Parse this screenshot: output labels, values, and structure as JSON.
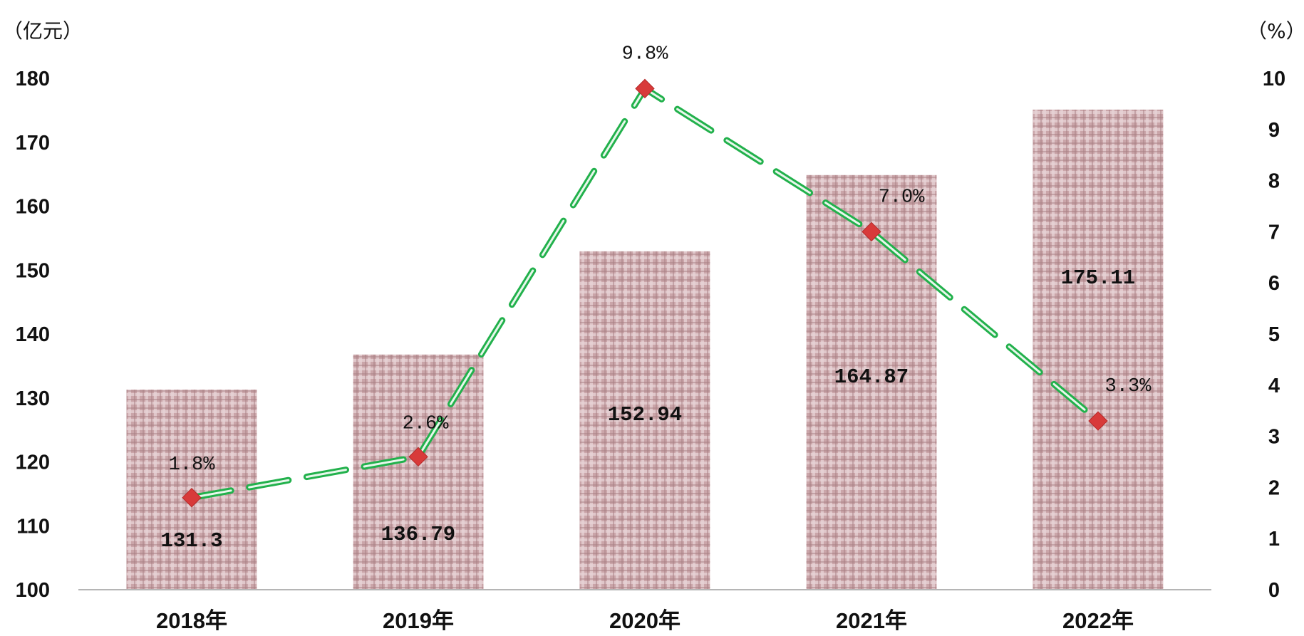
{
  "chart_data": {
    "type": "bar",
    "categories": [
      "2018年",
      "2019年",
      "2020年",
      "2021年",
      "2022年"
    ],
    "left_unit": "（亿元）",
    "right_unit": "（%）",
    "ylim": [
      100,
      180
    ],
    "y_ticks": [
      100,
      110,
      120,
      130,
      140,
      150,
      160,
      170,
      180
    ],
    "y2lim": [
      0,
      10
    ],
    "y2_ticks": [
      0,
      1,
      2,
      3,
      4,
      5,
      6,
      7,
      8,
      9,
      10
    ],
    "series": [
      {
        "type": "bar",
        "values": [
          131.3,
          136.79,
          152.94,
          164.87,
          175.11
        ],
        "labels": [
          "131.3",
          "136.79",
          "152.94",
          "164.87",
          "175.11"
        ],
        "color": "#c9a4a8"
      },
      {
        "type": "line",
        "axis": "right",
        "values": [
          1.8,
          2.6,
          9.8,
          7.0,
          3.3
        ],
        "labels": [
          "1.8%",
          "2.6%",
          "9.8%",
          "7.0%",
          "3.3%"
        ],
        "color": "#22b14c",
        "marker_color": "#d83a3a"
      }
    ],
    "grid": false
  }
}
